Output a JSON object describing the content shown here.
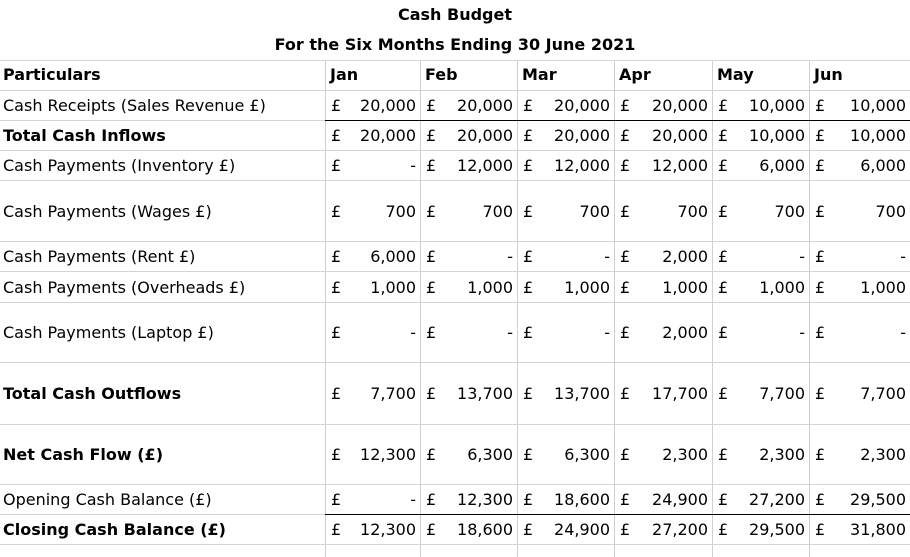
{
  "title": "Cash Budget",
  "subtitle": "For the Six Months Ending 30 June 2021",
  "header": {
    "particulars": "Particulars",
    "months": [
      "Jan",
      "Feb",
      "Mar",
      "Apr",
      "May",
      "Jun"
    ]
  },
  "rows": [
    {
      "label": "Cash Receipts (Sales Revenue £)",
      "bold": false,
      "values": [
        [
          "£",
          "20,000"
        ],
        [
          "£",
          "20,000"
        ],
        [
          "£",
          "20,000"
        ],
        [
          "£",
          "20,000"
        ],
        [
          "£",
          "10,000"
        ],
        [
          "£",
          "10,000"
        ]
      ]
    },
    {
      "label": "Total Cash Inflows",
      "bold": true,
      "values": [
        [
          "£",
          "20,000"
        ],
        [
          "£",
          "20,000"
        ],
        [
          "£",
          "20,000"
        ],
        [
          "£",
          "20,000"
        ],
        [
          "£",
          "10,000"
        ],
        [
          "£",
          "10,000"
        ]
      ]
    },
    {
      "label": "Cash Payments (Inventory £)",
      "bold": false,
      "values": [
        [
          "£",
          "-"
        ],
        [
          "£",
          "12,000"
        ],
        [
          "£",
          "12,000"
        ],
        [
          "£",
          "12,000"
        ],
        [
          "£",
          "6,000"
        ],
        [
          "£",
          "6,000"
        ]
      ]
    },
    {
      "label": "Cash Payments (Wages £)",
      "bold": false,
      "values": [
        [
          "£",
          "700"
        ],
        [
          "£",
          "700"
        ],
        [
          "£",
          "700"
        ],
        [
          "£",
          "700"
        ],
        [
          "£",
          "700"
        ],
        [
          "£",
          "700"
        ]
      ]
    },
    {
      "label": "Cash Payments (Rent £)",
      "bold": false,
      "values": [
        [
          "£",
          "6,000"
        ],
        [
          "£",
          "-"
        ],
        [
          "£",
          "-"
        ],
        [
          "£",
          "2,000"
        ],
        [
          "£",
          "-"
        ],
        [
          "£",
          "-"
        ]
      ]
    },
    {
      "label": "Cash Payments (Overheads £)",
      "bold": false,
      "values": [
        [
          "£",
          "1,000"
        ],
        [
          "£",
          "1,000"
        ],
        [
          "£",
          "1,000"
        ],
        [
          "£",
          "1,000"
        ],
        [
          "£",
          "1,000"
        ],
        [
          "£",
          "1,000"
        ]
      ]
    },
    {
      "label": "Cash Payments (Laptop £)",
      "bold": false,
      "values": [
        [
          "£",
          "-"
        ],
        [
          "£",
          "-"
        ],
        [
          "£",
          "-"
        ],
        [
          "£",
          "2,000"
        ],
        [
          "£",
          "-"
        ],
        [
          "£",
          "-"
        ]
      ]
    },
    {
      "label": "Total Cash Outflows",
      "bold": true,
      "values": [
        [
          "£",
          "7,700"
        ],
        [
          "£",
          "13,700"
        ],
        [
          "£",
          "13,700"
        ],
        [
          "£",
          "17,700"
        ],
        [
          "£",
          "7,700"
        ],
        [
          "£",
          "7,700"
        ]
      ]
    },
    {
      "label": "Net Cash Flow (£)",
      "bold": true,
      "values": [
        [
          "£",
          "12,300"
        ],
        [
          "£",
          "6,300"
        ],
        [
          "£",
          "6,300"
        ],
        [
          "£",
          "2,300"
        ],
        [
          "£",
          "2,300"
        ],
        [
          "£",
          "2,300"
        ]
      ]
    },
    {
      "label": "Opening Cash Balance (£)",
      "bold": false,
      "values": [
        [
          "£",
          "-"
        ],
        [
          "£",
          "12,300"
        ],
        [
          "£",
          "18,600"
        ],
        [
          "£",
          "24,900"
        ],
        [
          "£",
          "27,200"
        ],
        [
          "£",
          "29,500"
        ]
      ]
    },
    {
      "label": "Closing Cash Balance (£)",
      "bold": true,
      "values": [
        [
          "£",
          "12,300"
        ],
        [
          "£",
          "18,600"
        ],
        [
          "£",
          "24,900"
        ],
        [
          "£",
          "27,200"
        ],
        [
          "£",
          "29,500"
        ],
        [
          "£",
          "31,800"
        ]
      ]
    }
  ]
}
